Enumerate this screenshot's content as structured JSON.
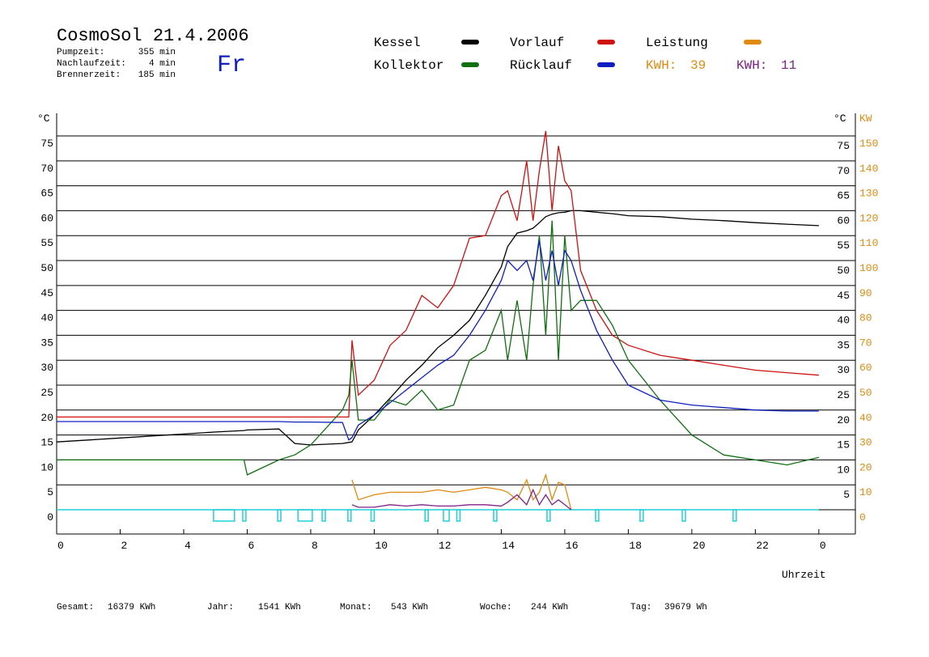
{
  "chart_data": {
    "type": "line",
    "title": "CosmoSol 21.4.2006",
    "stats": [
      {
        "label": "Pumpzeit:",
        "value": "355 min"
      },
      {
        "label": "Nachlaufzeit:",
        "value": "4 min"
      },
      {
        "label": "Brennerzeit:",
        "value": "185 min"
      }
    ],
    "weekday": "Fr",
    "footer": [
      {
        "label": "Gesamt:",
        "value": "16379 KWh"
      },
      {
        "label": "Jahr:",
        "value": "1541 KWh"
      },
      {
        "label": "Monat:",
        "value": "543 KWh"
      },
      {
        "label": "Woche:",
        "value": "244 KWh"
      },
      {
        "label": "Tag:",
        "value": "39679 Wh"
      }
    ],
    "totals": [
      {
        "label": "KWH:",
        "value": 39,
        "color": "#e08a10"
      },
      {
        "label": "KWH:",
        "value": 11,
        "color": "#80208a"
      }
    ],
    "x_label": "Uhrzeit",
    "y_label": "°C",
    "y_label_right": "°C",
    "y2_label": "KW",
    "grid": true,
    "xlim": [
      0,
      25.15
    ],
    "xticks": [
      0,
      2,
      4,
      6,
      8,
      10,
      12,
      14,
      16,
      18,
      20,
      22,
      {
        "value": 24,
        "label": "0"
      }
    ],
    "ylim": [
      -4.87,
      79.55
    ],
    "yticks": [
      0,
      5,
      10,
      15,
      20,
      25,
      30,
      35,
      40,
      45,
      50,
      55,
      60,
      65,
      70,
      75
    ],
    "yticks_right": [
      5,
      10,
      15,
      20,
      25,
      30,
      35,
      40,
      45,
      50,
      55,
      60,
      65,
      70,
      75
    ],
    "y2lim": [
      -9.74,
      159.1
    ],
    "y2ticks": [
      0,
      10,
      20,
      30,
      40,
      50,
      60,
      70,
      80,
      90,
      100,
      110,
      120,
      130,
      140,
      150
    ],
    "x": [
      0,
      1,
      2,
      3,
      4,
      5,
      5.9,
      6,
      7,
      7.5,
      8,
      9,
      9.2,
      9.3,
      9.5,
      10,
      10.5,
      11,
      11.5,
      12,
      12.5,
      13,
      13.5,
      14,
      14.2,
      14.5,
      14.8,
      15,
      15.2,
      15.4,
      15.6,
      15.8,
      16,
      16.2,
      16.5,
      17,
      17.5,
      18,
      19,
      20,
      21,
      22,
      23,
      24
    ],
    "series": [
      {
        "name": "Kessel",
        "color": "#000000",
        "values": [
          13.6,
          14,
          14.4,
          14.8,
          15.2,
          15.6,
          15.9,
          16,
          16.2,
          13.3,
          13,
          13.3,
          13.5,
          13.6,
          16,
          19,
          22.4,
          26,
          29,
          32.5,
          35,
          38,
          43,
          48.7,
          52.8,
          55.5,
          56,
          56.5,
          57.6,
          58.8,
          59.3,
          59.6,
          59.7,
          60,
          60,
          59.7,
          59.4,
          59,
          58.8,
          58.3,
          58,
          57.6,
          57.3,
          57
        ]
      },
      {
        "name": "Vorlauf",
        "color": "#d01010",
        "values": [
          18.6,
          18.6,
          18.6,
          18.6,
          18.6,
          18.6,
          18.6,
          18.6,
          18.6,
          18.6,
          18.6,
          18.6,
          18.6,
          34,
          23,
          26,
          33,
          36,
          43,
          40.5,
          45,
          54.5,
          55,
          63,
          64,
          58,
          70,
          58,
          68,
          76,
          60,
          73,
          66,
          64,
          48,
          40,
          35,
          33,
          31,
          30,
          29,
          28,
          27.5,
          27
        ]
      },
      {
        "name": "Leistung",
        "color": "#e08a10",
        "axis": "y2",
        "values": [
          null,
          null,
          null,
          null,
          null,
          null,
          null,
          null,
          null,
          null,
          null,
          null,
          null,
          12,
          4,
          6,
          7,
          7,
          7,
          8,
          7,
          8,
          9,
          8,
          7,
          4,
          12,
          4,
          7,
          14,
          4,
          11,
          10,
          0,
          null,
          null,
          null,
          null,
          null,
          null,
          null,
          null,
          null,
          null
        ]
      },
      {
        "name": "Kollektor",
        "color": "#107010",
        "values": [
          10,
          10,
          10,
          10,
          10,
          10,
          10,
          7,
          10,
          11,
          13,
          20,
          23,
          30,
          18,
          18,
          22,
          21,
          24,
          20,
          21,
          30,
          32,
          40,
          30,
          42,
          30,
          45,
          55,
          35,
          58,
          30,
          55,
          40,
          42,
          42,
          37,
          30,
          22,
          15,
          11,
          10,
          9,
          10.5
        ]
      },
      {
        "name": "Rücklauf",
        "color": "#1020c0",
        "values": [
          17.7,
          17.7,
          17.7,
          17.7,
          17.7,
          17.7,
          17.7,
          17.7,
          17.7,
          17.6,
          17.6,
          17.5,
          14,
          14.5,
          17,
          19,
          21.5,
          24,
          26.5,
          29,
          31,
          35,
          40,
          46,
          50,
          48,
          50,
          46,
          54,
          46,
          52,
          45,
          52,
          50,
          44,
          36,
          30,
          25,
          22,
          21,
          20.5,
          20,
          19.8,
          19.8
        ]
      },
      {
        "color": "#80208a",
        "axis": "y2",
        "values": [
          null,
          null,
          null,
          null,
          null,
          null,
          null,
          null,
          null,
          null,
          null,
          null,
          null,
          2,
          1,
          1,
          2,
          1.5,
          2,
          1.5,
          1.5,
          2,
          2,
          1.5,
          3,
          6,
          2,
          8,
          2,
          6,
          2,
          4,
          2,
          0,
          null,
          null,
          null,
          null,
          null,
          null,
          null,
          null,
          null,
          null
        ]
      }
    ],
    "pump": {
      "color": "#20d0d8",
      "intervals": [
        [
          4.94,
          5.6
        ],
        [
          5.86,
          5.96
        ],
        [
          6.96,
          7.06
        ],
        [
          7.6,
          8.05
        ],
        [
          8.36,
          8.46
        ],
        [
          9.17,
          9.27
        ],
        [
          9.9,
          10.0
        ],
        [
          11.6,
          11.7
        ],
        [
          12.18,
          12.36
        ],
        [
          12.6,
          12.7
        ],
        [
          13.76,
          13.86
        ],
        [
          15.44,
          15.54
        ],
        [
          16.97,
          17.07
        ],
        [
          18.37,
          18.47
        ],
        [
          19.7,
          19.8
        ],
        [
          21.3,
          21.4
        ]
      ]
    }
  }
}
